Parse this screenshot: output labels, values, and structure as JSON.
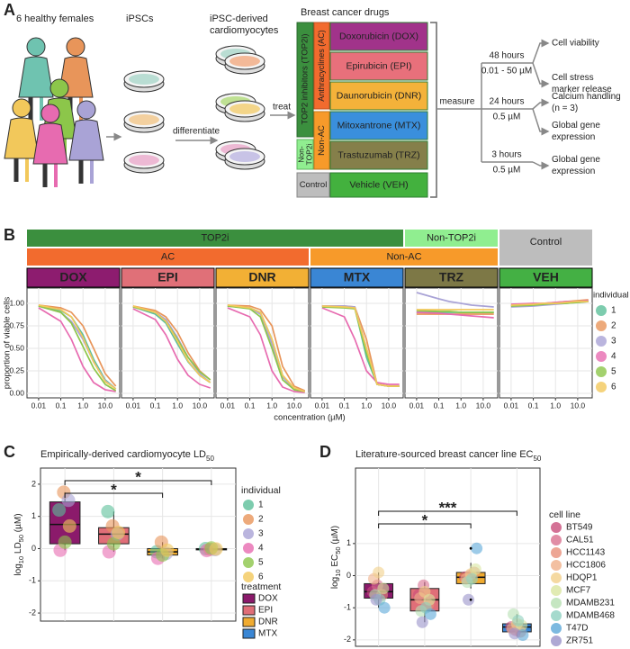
{
  "panel_a": {
    "label": "A",
    "donors": "6 healthy females",
    "ipsc": "iPSCs",
    "cardio": [
      "iPSC-derived",
      "cardiomyocytes"
    ],
    "drugs_title": "Breast cancer drugs",
    "steps": {
      "differentiate": "differentiate",
      "treat": "treat",
      "measure": "measure"
    },
    "classes": {
      "top2i": "TOP2 inhibitors (TOP2i)",
      "ac": "Anthracyclines (AC)",
      "nonac": "Non-AC",
      "nontop2i": [
        "Non-",
        "TOP2i"
      ],
      "control": "Control"
    },
    "drugs": [
      {
        "name": "Doxorubicin (DOX)",
        "color": "#a1338a"
      },
      {
        "name": "Epirubicin (EPI)",
        "color": "#e8707b"
      },
      {
        "name": "Daunorubicin (DNR)",
        "color": "#f4b23a"
      },
      {
        "name": "Mitoxantrone (MTX)",
        "color": "#3a8fdc"
      },
      {
        "name": "Trastuzumab (TRZ)",
        "color": "#857f4a"
      },
      {
        "name": "Vehicle (VEH)",
        "color": "#43b13e"
      }
    ],
    "arms": [
      {
        "time": "48 hours",
        "dose": "0.01 - 50 µM",
        "outcomes": [
          [
            "Cell viability"
          ],
          [
            "Cell stress",
            "marker release"
          ]
        ]
      },
      {
        "time": "24 hours",
        "dose": "0.5 µM",
        "outcomes": [
          [
            "Calcium handling",
            "(n = 3)"
          ],
          [
            "Global gene",
            "expression"
          ]
        ]
      },
      {
        "time": "3 hours",
        "dose": "0.5 µM",
        "outcomes": [
          [
            "Global gene",
            "expression"
          ]
        ]
      }
    ]
  },
  "chart_data": [
    {
      "type": "line",
      "label": "B",
      "ylabel": "proportion of viable cells",
      "xlabel": "concentration (µM)",
      "log_x": true,
      "grid": true,
      "x": [
        0.01,
        0.1,
        0.3,
        1,
        3,
        10,
        30
      ],
      "xlim": [
        0.003,
        45
      ],
      "xticks": [
        0.01,
        0.1,
        {
          "value": 1,
          "label": "1.0"
        },
        {
          "value": 10,
          "label": "10.0"
        }
      ],
      "ylim": [
        -0.05,
        1.17
      ],
      "yticks": [
        {
          "value": 0,
          "label": "0.00"
        },
        0.25,
        {
          "value": 0.5,
          "label": "0.50"
        },
        0.75,
        {
          "value": 1,
          "label": "1.00"
        }
      ],
      "legend_title": "individual",
      "series": [
        {
          "name": "1",
          "color": "#5cbf9a"
        },
        {
          "name": "2",
          "color": "#e8955a"
        },
        {
          "name": "3",
          "color": "#a9a3d6"
        },
        {
          "name": "4",
          "color": "#e76bb0"
        },
        {
          "name": "5",
          "color": "#8cc64a"
        },
        {
          "name": "6",
          "color": "#f2c85b"
        }
      ],
      "facets": [
        {
          "name": "DOX",
          "color": "#8d1c6f",
          "values": [
            [
              0.97,
              0.92,
              0.85,
              0.65,
              0.38,
              0.15,
              0.05
            ],
            [
              0.98,
              0.95,
              0.9,
              0.75,
              0.5,
              0.22,
              0.08
            ],
            [
              0.97,
              0.9,
              0.8,
              0.6,
              0.35,
              0.14,
              0.05
            ],
            [
              0.95,
              0.8,
              0.6,
              0.3,
              0.12,
              0.04,
              0.02
            ],
            [
              0.97,
              0.9,
              0.78,
              0.52,
              0.28,
              0.1,
              0.03
            ],
            [
              0.98,
              0.93,
              0.85,
              0.62,
              0.35,
              0.13,
              0.05
            ]
          ]
        },
        {
          "name": "EPI",
          "color": "#e07078",
          "values": [
            [
              0.96,
              0.88,
              0.78,
              0.55,
              0.35,
              0.2,
              0.12
            ],
            [
              0.97,
              0.92,
              0.85,
              0.68,
              0.45,
              0.25,
              0.15
            ],
            [
              0.96,
              0.9,
              0.82,
              0.62,
              0.4,
              0.22,
              0.12
            ],
            [
              0.94,
              0.82,
              0.65,
              0.38,
              0.2,
              0.1,
              0.06
            ],
            [
              0.96,
              0.9,
              0.8,
              0.6,
              0.4,
              0.24,
              0.15
            ],
            [
              0.97,
              0.9,
              0.8,
              0.58,
              0.36,
              0.2,
              0.12
            ]
          ]
        },
        {
          "name": "DNR",
          "color": "#f2b035",
          "values": [
            [
              0.97,
              0.95,
              0.9,
              0.6,
              0.2,
              0.05,
              0.02
            ],
            [
              0.98,
              0.97,
              0.93,
              0.75,
              0.3,
              0.08,
              0.03
            ],
            [
              0.97,
              0.95,
              0.88,
              0.55,
              0.18,
              0.05,
              0.02
            ],
            [
              0.95,
              0.85,
              0.65,
              0.25,
              0.07,
              0.02,
              0.01
            ],
            [
              0.97,
              0.94,
              0.85,
              0.5,
              0.15,
              0.04,
              0.02
            ],
            [
              0.98,
              0.95,
              0.9,
              0.6,
              0.2,
              0.06,
              0.02
            ]
          ]
        },
        {
          "name": "MTX",
          "color": "#3a86d4",
          "values": [
            [
              0.97,
              0.96,
              0.95,
              0.4,
              0.1,
              0.08,
              0.08
            ],
            [
              0.97,
              0.97,
              0.96,
              0.6,
              0.1,
              0.08,
              0.08
            ],
            [
              0.97,
              0.97,
              0.96,
              0.5,
              0.1,
              0.08,
              0.08
            ],
            [
              0.95,
              0.85,
              0.6,
              0.25,
              0.12,
              0.1,
              0.1
            ],
            [
              0.96,
              0.95,
              0.94,
              0.45,
              0.1,
              0.08,
              0.08
            ],
            [
              0.97,
              0.96,
              0.95,
              0.5,
              0.1,
              0.08,
              0.08
            ]
          ]
        },
        {
          "name": "TRZ",
          "color": "#7d7846",
          "values": [
            [
              0.9,
              0.9,
              0.9,
              0.9,
              0.9,
              0.9,
              0.9
            ],
            [
              0.88,
              0.88,
              0.88,
              0.88,
              0.88,
              0.88,
              0.88
            ],
            [
              1.12,
              1.05,
              1.02,
              1.0,
              0.98,
              0.97,
              0.96
            ],
            [
              0.9,
              0.89,
              0.88,
              0.87,
              0.86,
              0.85,
              0.84
            ],
            [
              0.92,
              0.91,
              0.91,
              0.9,
              0.9,
              0.9,
              0.9
            ],
            [
              0.93,
              0.93,
              0.93,
              0.93,
              0.93,
              0.93,
              0.93
            ]
          ]
        },
        {
          "name": "VEH",
          "color": "#44b044",
          "values": [
            [
              0.97,
              0.98,
              0.99,
              1.0,
              1.01,
              1.02,
              1.03
            ],
            [
              0.98,
              0.99,
              1.0,
              1.01,
              1.02,
              1.03,
              1.04
            ],
            [
              0.96,
              0.97,
              0.98,
              0.99,
              1.0,
              1.01,
              1.02
            ],
            [
              0.99,
              1.0,
              1.0,
              1.01,
              1.02,
              1.02,
              1.03
            ],
            [
              0.97,
              0.98,
              0.99,
              1.0,
              1.0,
              1.01,
              1.02
            ],
            [
              0.98,
              0.99,
              1.0,
              1.0,
              1.01,
              1.02,
              1.02
            ]
          ]
        }
      ],
      "strips": [
        [
          {
            "name": "TOP2i",
            "color": "#3b8f3e",
            "facets": [
              "DOX",
              "EPI",
              "DNR",
              "MTX"
            ]
          },
          {
            "name": "Non-TOP2i",
            "color": "#90ee90",
            "facets": [
              "TRZ"
            ]
          },
          {
            "name": "Control",
            "color": "#bdbdbd",
            "facets": [
              "VEH"
            ]
          }
        ],
        [
          {
            "name": "AC",
            "color": "#f26b2e",
            "facets": [
              "DOX",
              "EPI",
              "DNR"
            ]
          },
          {
            "name": "Non-AC",
            "color": "#f79a2a",
            "facets": [
              "MTX",
              "TRZ"
            ]
          }
        ]
      ]
    },
    {
      "type": "box",
      "label": "C",
      "title": "Empirically-derived cardiomyocyte LD",
      "title_sub": "50",
      "ylabel": [
        "log",
        "10",
        " LD",
        "50",
        " (µM)"
      ],
      "ylabel_sub": [
        false,
        true,
        false,
        true,
        false
      ],
      "ylim": [
        -2.25,
        2.5
      ],
      "yticks": [
        -2,
        -1,
        0,
        1,
        2
      ],
      "grid": true,
      "categories": [
        "DOX",
        "EPI",
        "DNR",
        "MTX"
      ],
      "boxes": [
        {
          "min": -0.05,
          "q1": 0.15,
          "median": 0.75,
          "q3": 1.45,
          "max": 1.75,
          "color": "#8b1a6b"
        },
        {
          "min": -0.1,
          "q1": 0.15,
          "median": 0.45,
          "q3": 0.65,
          "max": 1.15,
          "color": "#e06e78"
        },
        {
          "min": -0.3,
          "q1": -0.2,
          "median": -0.1,
          "q3": 0.0,
          "max": 0.2,
          "color": "#f0ab30"
        },
        {
          "min": -0.06,
          "q1": -0.04,
          "median": -0.02,
          "q3": 0.0,
          "max": 0.02,
          "color": "#3a86d4"
        }
      ],
      "legend_title": "individual",
      "series": [
        {
          "name": "1",
          "color": "#5cbf9a",
          "values": [
            1.2,
            1.15,
            -0.1,
            0.0
          ]
        },
        {
          "name": "2",
          "color": "#e8955a",
          "values": [
            1.75,
            0.7,
            0.2,
            -0.02
          ]
        },
        {
          "name": "3",
          "color": "#a9a3d6",
          "values": [
            1.5,
            0.45,
            -0.15,
            -0.03
          ]
        },
        {
          "name": "4",
          "color": "#e76bb0",
          "values": [
            -0.05,
            -0.1,
            -0.3,
            -0.06
          ]
        },
        {
          "name": "5",
          "color": "#8cc64a",
          "values": [
            0.2,
            0.15,
            -0.2,
            0.02
          ]
        },
        {
          "name": "6",
          "color": "#f2c85b",
          "values": [
            0.7,
            0.5,
            -0.05,
            -0.01
          ]
        }
      ],
      "legend2_title": "treatment",
      "brackets": [
        {
          "label": "*",
          "between": [
            0,
            3
          ]
        },
        {
          "label": "*",
          "between": [
            0,
            2
          ]
        }
      ]
    },
    {
      "type": "box",
      "label": "D",
      "title": "Literature-sourced breast cancer line EC",
      "title_sub": "50",
      "ylabel": [
        "log",
        "10",
        " EC",
        "50",
        " (µM)"
      ],
      "ylabel_sub": [
        false,
        true,
        false,
        true,
        false
      ],
      "ylim": [
        -2.2,
        3.35
      ],
      "yticks": [
        -2,
        -1,
        0,
        1
      ],
      "grid": true,
      "boxes": [
        {
          "min": -1.0,
          "q1": -0.7,
          "median": -0.5,
          "q3": -0.25,
          "max": 0.1,
          "color": "#8b1a6b"
        },
        {
          "min": -1.45,
          "q1": -1.1,
          "median": -0.75,
          "q3": -0.4,
          "max": -0.2,
          "color": "#e06e78"
        },
        {
          "min": -0.4,
          "q1": -0.25,
          "median": -0.05,
          "q3": 0.1,
          "max": 0.4,
          "color": "#f0ab30",
          "outliers": [
            0.85,
            -0.75
          ]
        },
        {
          "min": -1.9,
          "q1": -1.75,
          "median": -1.6,
          "q3": -1.5,
          "max": -1.2,
          "color": "#3a86d4"
        }
      ],
      "legend_title": "cell line",
      "series": [
        {
          "name": "BT549",
          "color": "#c94f7c",
          "values": [
            -0.5,
            -0.6,
            -0.05,
            -1.6
          ]
        },
        {
          "name": "CAL51",
          "color": "#d9708f",
          "values": [
            -0.3,
            -0.3,
            0.0,
            -1.7
          ]
        },
        {
          "name": "HCC1143",
          "color": "#e8907a",
          "values": [
            -0.6,
            -0.9,
            0.1,
            -1.75
          ]
        },
        {
          "name": "HCC1806",
          "color": "#f0b08a",
          "values": [
            -0.1,
            -0.7,
            -0.1,
            -1.65
          ]
        },
        {
          "name": "HDQP1",
          "color": "#f2d08a",
          "values": [
            0.1,
            -0.5,
            0.05,
            -1.5
          ]
        },
        {
          "name": "MCF7",
          "color": "#d9e6a0",
          "values": [
            -0.4,
            -0.75,
            0.2,
            -1.55
          ]
        },
        {
          "name": "MDAMB231",
          "color": "#b6e0b2",
          "values": [
            -0.6,
            -1.1,
            -0.2,
            -1.2
          ]
        },
        {
          "name": "MDAMB468",
          "color": "#8fd1c0",
          "values": [
            -0.75,
            -1.0,
            -0.1,
            -1.4
          ]
        },
        {
          "name": "T47D",
          "color": "#5ba8d8",
          "values": [
            -1.0,
            -1.2,
            0.85,
            -1.85
          ]
        },
        {
          "name": "ZR751",
          "color": "#9a92c9",
          "values": [
            -0.75,
            -1.45,
            -0.75,
            -1.8
          ]
        }
      ],
      "brackets": [
        {
          "label": "***",
          "between": [
            0,
            3
          ]
        },
        {
          "label": "*",
          "between": [
            0,
            2
          ]
        }
      ]
    }
  ]
}
